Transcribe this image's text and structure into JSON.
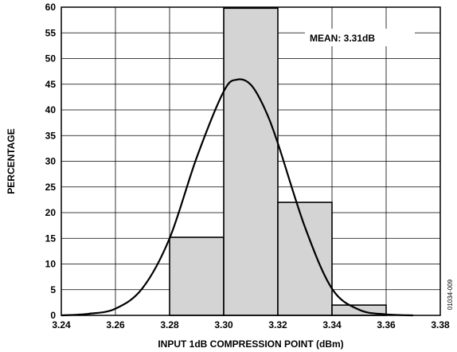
{
  "chart_data": {
    "type": "bar",
    "title": "",
    "xlabel": "INPUT 1dB COMPRESSION POINT (dBm)",
    "ylabel": "PERCENTAGE",
    "xlim": [
      3.24,
      3.38
    ],
    "ylim": [
      0,
      60
    ],
    "x_ticks": [
      3.24,
      3.26,
      3.28,
      3.3,
      3.32,
      3.34,
      3.36,
      3.38
    ],
    "x_tick_labels": [
      "3.24",
      "3.26",
      "3.28",
      "3.30",
      "3.32",
      "3.34",
      "3.36",
      "3.38"
    ],
    "y_ticks": [
      0,
      5,
      10,
      15,
      20,
      25,
      30,
      35,
      40,
      45,
      50,
      55,
      60
    ],
    "y_tick_labels": [
      "0",
      "5",
      "10",
      "15",
      "20",
      "25",
      "30",
      "35",
      "40",
      "45",
      "50",
      "55",
      "60"
    ],
    "grid": true,
    "bins": [
      {
        "x_start": 3.28,
        "x_end": 3.3,
        "value": 15.2
      },
      {
        "x_start": 3.3,
        "x_end": 3.32,
        "value": 59.8
      },
      {
        "x_start": 3.32,
        "x_end": 3.34,
        "value": 22.0
      },
      {
        "x_start": 3.34,
        "x_end": 3.36,
        "value": 2.0
      }
    ],
    "fit_curve": {
      "type": "normal",
      "x": [
        3.24,
        3.25,
        3.26,
        3.27,
        3.28,
        3.29,
        3.3,
        3.305,
        3.31,
        3.315,
        3.32,
        3.33,
        3.34,
        3.35,
        3.36,
        3.37
      ],
      "y": [
        0.0,
        0.3,
        1.3,
        5.3,
        15.0,
        30.7,
        43.6,
        45.9,
        44.9,
        40.4,
        33.5,
        17.2,
        5.2,
        1.1,
        0.2,
        0.0
      ]
    },
    "annotation": "MEAN: 3.31dB",
    "figure_id": "01034-009",
    "colors": {
      "bar_fill": "#d4d4d4",
      "bar_stroke": "#000000",
      "grid": "#000000",
      "curve": "#000000"
    }
  }
}
